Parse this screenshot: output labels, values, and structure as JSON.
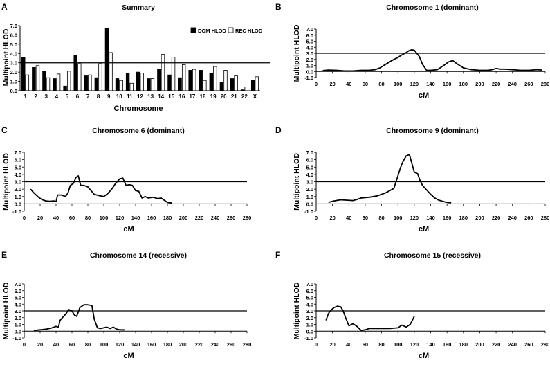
{
  "chart_data": [
    {
      "type": "bar",
      "panel_label": "A",
      "title": "Summary",
      "xlabel": "Chromosome",
      "ylabel": "Multipoint HLOD",
      "ylim": [
        0,
        7
      ],
      "yticks": [
        "0.0",
        "1.0",
        "2.0",
        "3.0",
        "4.0",
        "5.0",
        "6.0",
        "7.0"
      ],
      "threshold": 3.0,
      "categories": [
        "1",
        "2",
        "3",
        "4",
        "5",
        "6",
        "7",
        "8",
        "9",
        "10",
        "11",
        "12",
        "13",
        "14",
        "15",
        "16",
        "17",
        "18",
        "19",
        "20",
        "21",
        "22",
        "X"
      ],
      "series": [
        {
          "name": "DOM HLOD",
          "color": "#000000",
          "values": [
            3.6,
            2.5,
            2.1,
            1.3,
            0.5,
            3.8,
            1.6,
            1.4,
            6.7,
            1.3,
            1.9,
            2.0,
            1.3,
            2.3,
            1.7,
            1.4,
            2.2,
            2.2,
            1.9,
            0.9,
            1.3,
            0.1,
            1.1
          ]
        },
        {
          "name": "REC HLOD",
          "color": "#ffffff",
          "values": [
            1.7,
            2.7,
            1.4,
            1.8,
            2.1,
            2.9,
            1.7,
            2.9,
            4.1,
            1.1,
            0.8,
            1.9,
            1.3,
            3.9,
            3.6,
            2.8,
            2.3,
            1.1,
            2.6,
            2.2,
            1.6,
            0.4,
            1.5
          ]
        }
      ],
      "legend": "top-right"
    },
    {
      "type": "line",
      "panel_label": "B",
      "title": "Chromosome 1 (dominant)",
      "xlabel": "cM",
      "ylabel": "Multipoint HLOD",
      "xlim": [
        0,
        280
      ],
      "ylim": [
        -1,
        7
      ],
      "threshold": 3.0,
      "xticks": [
        "0",
        "20",
        "40",
        "60",
        "80",
        "100",
        "120",
        "140",
        "160",
        "180",
        "200",
        "220",
        "240",
        "260",
        "280"
      ],
      "yticks": [
        "-1.0",
        "0.0",
        "1.0",
        "2.0",
        "3.0",
        "4.0",
        "5.0",
        "6.0",
        "7.0"
      ],
      "x": [
        8,
        15,
        25,
        35,
        45,
        55,
        65,
        72,
        78,
        85,
        90,
        95,
        100,
        103,
        107,
        110,
        113,
        117,
        120,
        123,
        126,
        130,
        135,
        140,
        148,
        155,
        162,
        167,
        172,
        180,
        190,
        200,
        210,
        215,
        220,
        225,
        230,
        240,
        250,
        260,
        270,
        276
      ],
      "y": [
        0.15,
        0.25,
        0.2,
        0.1,
        0.1,
        0.2,
        0.2,
        0.3,
        0.6,
        1.2,
        1.6,
        2.0,
        2.3,
        2.6,
        2.9,
        3.1,
        3.4,
        3.6,
        3.5,
        3.0,
        2.5,
        1.2,
        0.2,
        0.2,
        0.3,
        0.9,
        1.6,
        1.8,
        1.3,
        0.6,
        0.3,
        0.2,
        0.2,
        0.3,
        0.5,
        0.4,
        0.4,
        0.3,
        0.2,
        0.2,
        0.3,
        0.25
      ]
    },
    {
      "type": "line",
      "panel_label": "C",
      "title": "Chromosome 6 (dominant)",
      "xlabel": "cM",
      "ylabel": "Multipoint HLOD",
      "xlim": [
        0,
        280
      ],
      "ylim": [
        -1,
        7
      ],
      "threshold": 3.0,
      "xticks": [
        "0",
        "20",
        "40",
        "60",
        "80",
        "100",
        "120",
        "140",
        "160",
        "180",
        "200",
        "220",
        "240",
        "260",
        "280"
      ],
      "yticks": [
        "-1.0",
        "0.0",
        "1.0",
        "2.0",
        "3.0",
        "4.0",
        "5.0",
        "6.0",
        "7.0"
      ],
      "x": [
        8,
        12,
        18,
        22,
        27,
        32,
        37,
        40,
        42,
        47,
        52,
        55,
        58,
        62,
        65,
        68,
        71,
        75,
        80,
        88,
        95,
        100,
        105,
        110,
        115,
        120,
        124,
        128,
        132,
        136,
        140,
        144,
        148,
        152,
        156,
        162,
        168,
        172,
        176,
        180,
        186
      ],
      "y": [
        2.0,
        1.5,
        0.9,
        0.6,
        0.4,
        0.35,
        0.4,
        0.3,
        1.2,
        1.2,
        1.0,
        1.5,
        2.5,
        2.8,
        3.6,
        3.8,
        2.5,
        2.5,
        2.3,
        1.3,
        1.1,
        1.0,
        1.4,
        2.0,
        2.8,
        3.4,
        3.5,
        2.5,
        2.6,
        2.5,
        1.8,
        1.7,
        0.8,
        1.0,
        0.8,
        0.9,
        0.7,
        0.8,
        0.5,
        0.2,
        0.1
      ]
    },
    {
      "type": "line",
      "panel_label": "D",
      "title": "Chromosome 9 (dominant)",
      "xlabel": "cM",
      "ylabel": "Multipoint HLOD",
      "xlim": [
        0,
        280
      ],
      "ylim": [
        -1,
        7
      ],
      "threshold": 3.0,
      "xticks": [
        "0",
        "20",
        "40",
        "60",
        "80",
        "100",
        "120",
        "140",
        "160",
        "180",
        "200",
        "220",
        "240",
        "260",
        "280"
      ],
      "yticks": [
        "-1.0",
        "0.0",
        "1.0",
        "2.0",
        "3.0",
        "4.0",
        "5.0",
        "6.0",
        "7.0"
      ],
      "x": [
        15,
        22,
        30,
        38,
        45,
        50,
        55,
        60,
        65,
        70,
        75,
        80,
        85,
        90,
        95,
        100,
        103,
        106,
        110,
        114,
        117,
        120,
        124,
        127,
        130,
        135,
        140,
        145,
        150,
        155,
        160,
        165
      ],
      "y": [
        0.2,
        0.4,
        0.55,
        0.5,
        0.45,
        0.6,
        0.8,
        0.85,
        0.9,
        1.0,
        1.1,
        1.3,
        1.5,
        1.8,
        2.1,
        3.8,
        4.9,
        5.7,
        6.5,
        6.7,
        5.5,
        4.3,
        4.1,
        3.2,
        2.5,
        1.9,
        1.3,
        0.8,
        0.5,
        0.35,
        0.2,
        0.15
      ]
    },
    {
      "type": "line",
      "panel_label": "E",
      "title": "Chromosome 14 (recessive)",
      "xlabel": "cM",
      "ylabel": "Multipoint HLOD",
      "xlim": [
        0,
        280
      ],
      "ylim": [
        -1,
        7
      ],
      "threshold": 3.0,
      "xticks": [
        "0",
        "20",
        "40",
        "60",
        "80",
        "100",
        "120",
        "140",
        "160",
        "180",
        "200",
        "220",
        "240",
        "260",
        "280"
      ],
      "yticks": [
        "-1.0",
        "0.0",
        "1.0",
        "2.0",
        "3.0",
        "4.0",
        "5.0",
        "6.0",
        "7.0"
      ],
      "x": [
        12,
        20,
        28,
        35,
        40,
        43,
        45,
        48,
        52,
        56,
        60,
        63,
        66,
        70,
        75,
        80,
        85,
        88,
        92,
        96,
        100,
        104,
        108,
        112,
        116,
        120,
        126
      ],
      "y": [
        0.1,
        0.2,
        0.3,
        0.5,
        0.7,
        0.6,
        1.6,
        2.0,
        2.5,
        3.2,
        3.0,
        2.4,
        2.2,
        3.5,
        3.9,
        3.9,
        3.8,
        1.8,
        0.5,
        0.4,
        0.5,
        0.6,
        0.4,
        0.6,
        0.3,
        0.2,
        0.2
      ]
    },
    {
      "type": "line",
      "panel_label": "F",
      "title": "Chromosome 15 (recessive)",
      "xlabel": "cM",
      "ylabel": "Multipoint HLOD",
      "xlim": [
        0,
        280
      ],
      "ylim": [
        -1,
        7
      ],
      "threshold": 3.0,
      "xticks": [
        "0",
        "20",
        "40",
        "60",
        "80",
        "100",
        "120",
        "140",
        "160",
        "180",
        "200",
        "220",
        "240",
        "260",
        "280"
      ],
      "yticks": [
        "-1.0",
        "0.0",
        "1.0",
        "2.0",
        "3.0",
        "4.0",
        "5.0",
        "6.0",
        "7.0"
      ],
      "x": [
        12,
        15,
        18,
        22,
        26,
        30,
        33,
        36,
        40,
        45,
        50,
        55,
        60,
        65,
        70,
        80,
        90,
        100,
        105,
        110,
        115,
        120
      ],
      "y": [
        1.6,
        2.6,
        3.1,
        3.5,
        3.7,
        3.6,
        3.0,
        2.0,
        0.8,
        1.1,
        0.7,
        0.1,
        0.2,
        0.4,
        0.4,
        0.4,
        0.4,
        0.5,
        0.9,
        0.6,
        1.0,
        2.2
      ]
    }
  ]
}
